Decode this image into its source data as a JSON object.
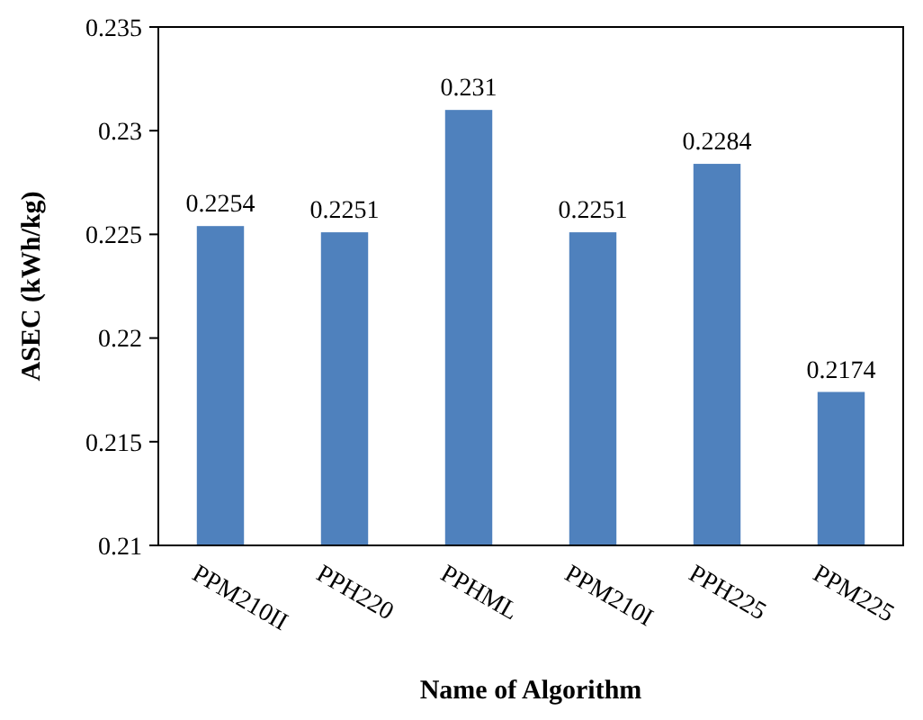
{
  "chart_data": {
    "type": "bar",
    "xlabel": "Name of Algorithm",
    "ylabel": "ASEC (kWh/kg)",
    "categories": [
      "PPM210II",
      "PPH220",
      "PPHML",
      "PPM210I",
      "PPH225",
      "PPM225"
    ],
    "values": [
      0.2254,
      0.2251,
      0.231,
      0.2251,
      0.2284,
      0.2174
    ],
    "color": "#4f81bd",
    "ylim": [
      0.21,
      0.235
    ],
    "yticks": [
      0.21,
      0.215,
      0.22,
      0.225,
      0.23,
      0.235
    ],
    "grid": false,
    "data_labels": true
  }
}
